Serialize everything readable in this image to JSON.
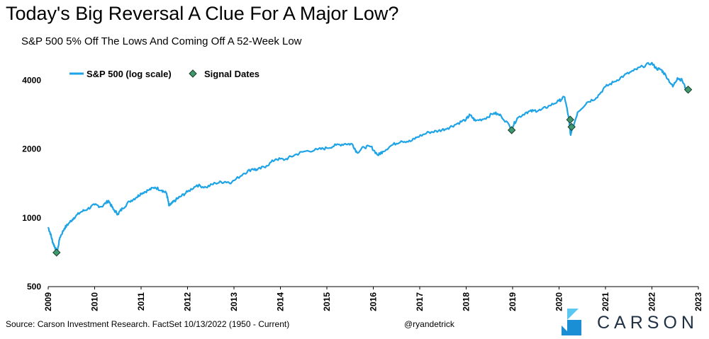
{
  "chart_data": {
    "type": "line",
    "title": "Today's Big Reversal A Clue For A Major Low?",
    "subtitle": "S&P 500 5% Off The Lows And Coming Off A 52-Week Low",
    "scale": "log",
    "ylim": [
      500,
      4900
    ],
    "xlim": [
      2009.0,
      2023.0
    ],
    "y_ticks": [
      500,
      1000,
      2000,
      4000
    ],
    "x_ticks": [
      "2009",
      "2010",
      "2011",
      "2012",
      "2013",
      "2014",
      "2015",
      "2016",
      "2017",
      "2018",
      "2019",
      "2020",
      "2021",
      "2022",
      "2023"
    ],
    "grid": false,
    "legend_position": "top-left",
    "series": [
      {
        "name": "S&P 500 (log scale)",
        "color": "#1ea4e6",
        "x": [
          2009.0,
          2009.05,
          2009.1,
          2009.15,
          2009.19,
          2009.25,
          2009.35,
          2009.45,
          2009.55,
          2009.7,
          2009.85,
          2010.0,
          2010.15,
          2010.3,
          2010.4,
          2010.5,
          2010.6,
          2010.75,
          2010.9,
          2011.0,
          2011.15,
          2011.3,
          2011.45,
          2011.55,
          2011.6,
          2011.65,
          2011.75,
          2011.85,
          2012.0,
          2012.2,
          2012.4,
          2012.6,
          2012.8,
          2012.95,
          2013.2,
          2013.4,
          2013.5,
          2013.7,
          2013.9,
          2014.1,
          2014.3,
          2014.5,
          2014.8,
          2015.0,
          2015.2,
          2015.4,
          2015.55,
          2015.65,
          2015.8,
          2015.95,
          2016.1,
          2016.2,
          2016.4,
          2016.6,
          2016.8,
          2016.95,
          2017.2,
          2017.4,
          2017.6,
          2017.8,
          2018.0,
          2018.08,
          2018.2,
          2018.4,
          2018.6,
          2018.75,
          2018.98,
          2019.1,
          2019.3,
          2019.45,
          2019.6,
          2019.8,
          2020.0,
          2020.12,
          2020.2,
          2020.25,
          2020.4,
          2020.6,
          2020.8,
          2021.0,
          2021.2,
          2021.4,
          2021.6,
          2021.8,
          2021.99,
          2022.1,
          2022.2,
          2022.3,
          2022.45,
          2022.55,
          2022.65,
          2022.75,
          2022.8
        ],
        "values": [
          910,
          850,
          780,
          740,
          700,
          820,
          900,
          950,
          1000,
          1060,
          1095,
          1140,
          1120,
          1190,
          1090,
          1040,
          1100,
          1180,
          1230,
          1280,
          1320,
          1360,
          1320,
          1280,
          1130,
          1150,
          1200,
          1240,
          1300,
          1390,
          1360,
          1420,
          1440,
          1430,
          1560,
          1640,
          1620,
          1690,
          1810,
          1800,
          1880,
          1950,
          1990,
          2020,
          2080,
          2110,
          2100,
          1930,
          2040,
          2050,
          1880,
          1950,
          2080,
          2170,
          2160,
          2260,
          2370,
          2400,
          2470,
          2580,
          2700,
          2820,
          2660,
          2720,
          2880,
          2800,
          2470,
          2730,
          2900,
          2940,
          2960,
          3100,
          3250,
          3380,
          2800,
          2300,
          2900,
          3200,
          3350,
          3750,
          3950,
          4200,
          4400,
          4600,
          4766,
          4500,
          4450,
          4200,
          3750,
          4100,
          4000,
          3600,
          3650
        ]
      },
      {
        "name": "Signal Dates",
        "color": "#3e9a6e",
        "x": [
          2009.18,
          2018.98,
          2020.24,
          2020.27,
          2022.78
        ],
        "values": [
          705,
          2420,
          2690,
          2500,
          3640
        ]
      }
    ]
  },
  "footer": {
    "source": "Source: Carson Investment Research. FactSet 10/13/2022 (1950 - Current)",
    "handle": "@ryandetrick"
  },
  "logo": {
    "name": "CARSON",
    "colors": [
      "#5ac8f0",
      "#1a8fd6",
      "#1f3044"
    ]
  }
}
